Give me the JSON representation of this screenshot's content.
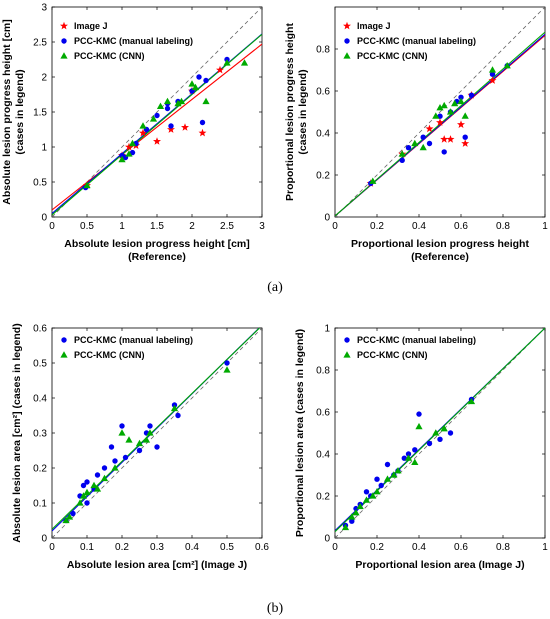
{
  "panel_labels": {
    "a": "(a)",
    "b": "(b)"
  },
  "colors": {
    "image_j": "#ff0000",
    "manual": "#0000ee",
    "cnn": "#00aa00",
    "diagonal": "#666666"
  },
  "chart_data": [
    {
      "type": "scatter",
      "xlabel": [
        "Absolute lesion progress height [cm]",
        "(Reference)"
      ],
      "ylabel": [
        "Absolute lesion progress height [cm]",
        "(cases in legend)"
      ],
      "xlim": [
        0,
        3
      ],
      "ylim": [
        0,
        3
      ],
      "xticks": [
        0,
        0.5,
        1,
        1.5,
        2,
        2.5,
        3
      ],
      "yticks": [
        0,
        0.5,
        1,
        1.5,
        2,
        2.5,
        3
      ],
      "xticklabels": [
        "0",
        "0.5",
        "1",
        "1.5",
        "2",
        "2.5",
        "3"
      ],
      "yticklabels": [
        "0",
        "0.5",
        "1",
        "1.5",
        "2",
        "2.5",
        "3"
      ],
      "grid": false,
      "legend_position": "top-left",
      "series": [
        {
          "name": "Image J",
          "marker": "star",
          "color": "#ff0000",
          "fit": [
            0.1,
            0.79
          ],
          "x": [
            0.5,
            1.0,
            1.1,
            1.2,
            1.3,
            1.5,
            1.7,
            1.9,
            2.0,
            2.15,
            2.4
          ],
          "y": [
            0.45,
            0.88,
            1.0,
            1.02,
            1.2,
            1.08,
            1.25,
            1.28,
            1.8,
            1.2,
            2.1
          ]
        },
        {
          "name": "PCC-KMC (manual labeling)",
          "marker": "circle",
          "color": "#0000ee",
          "fit": [
            0.05,
            0.855
          ],
          "x": [
            0.48,
            1.0,
            1.05,
            1.15,
            1.2,
            1.35,
            1.5,
            1.65,
            1.65,
            1.7,
            1.8,
            2.0,
            2.1,
            2.15,
            2.2,
            2.5
          ],
          "y": [
            0.42,
            0.88,
            0.85,
            0.92,
            1.05,
            1.25,
            1.45,
            1.55,
            1.62,
            1.3,
            1.65,
            1.8,
            2.0,
            1.35,
            1.95,
            2.25
          ]
        },
        {
          "name": "PCC-KMC (CNN)",
          "marker": "triangle",
          "color": "#00aa00",
          "fit": [
            0.03,
            0.86
          ],
          "x": [
            0.5,
            1.0,
            1.1,
            1.15,
            1.3,
            1.45,
            1.55,
            1.65,
            1.8,
            1.85,
            2.0,
            2.05,
            2.2,
            2.5,
            2.75
          ],
          "y": [
            0.45,
            0.82,
            0.9,
            1.05,
            1.3,
            1.4,
            1.58,
            1.65,
            1.62,
            1.65,
            1.9,
            1.85,
            1.65,
            2.2,
            2.2
          ]
        }
      ],
      "legend": [
        "Image J",
        "PCC-KMC (manual labeling)",
        "PCC-KMC (CNN)"
      ]
    },
    {
      "type": "scatter",
      "xlabel": [
        "Proportional lesion progress height",
        "(Reference)"
      ],
      "ylabel": [
        "Proportional lesion progress height",
        "(cases in legend)"
      ],
      "xlim": [
        0,
        1
      ],
      "ylim": [
        0,
        1
      ],
      "xticks": [
        0,
        0.2,
        0.4,
        0.6,
        0.8,
        1
      ],
      "yticks": [
        0,
        0.2,
        0.4,
        0.6,
        0.8
      ],
      "xticklabels": [
        "0",
        "0.2",
        "0.4",
        "0.6",
        "0.8",
        "1"
      ],
      "yticklabels": [
        "0",
        "0.2",
        "0.4",
        "0.6",
        "0.8"
      ],
      "grid": false,
      "legend_position": "top-left",
      "series": [
        {
          "name": "Image J",
          "marker": "star",
          "color": "#ff0000",
          "fit": [
            0.005,
            0.86
          ],
          "x": [
            0.17,
            0.32,
            0.45,
            0.5,
            0.52,
            0.55,
            0.6,
            0.62,
            0.65,
            0.75
          ],
          "y": [
            0.16,
            0.3,
            0.42,
            0.45,
            0.37,
            0.37,
            0.44,
            0.35,
            0.58,
            0.65
          ]
        },
        {
          "name": "PCC-KMC (manual labeling)",
          "marker": "circle",
          "color": "#0000ee",
          "fit": [
            0.005,
            0.865
          ],
          "x": [
            0.17,
            0.32,
            0.35,
            0.42,
            0.45,
            0.5,
            0.52,
            0.55,
            0.58,
            0.6,
            0.62,
            0.65,
            0.75,
            0.82
          ],
          "y": [
            0.16,
            0.27,
            0.33,
            0.38,
            0.35,
            0.48,
            0.31,
            0.5,
            0.55,
            0.57,
            0.38,
            0.58,
            0.68,
            0.72
          ]
        },
        {
          "name": "PCC-KMC (CNN)",
          "marker": "triangle",
          "color": "#00aa00",
          "fit": [
            0.005,
            0.875
          ],
          "x": [
            0.18,
            0.32,
            0.38,
            0.42,
            0.48,
            0.5,
            0.52,
            0.55,
            0.57,
            0.6,
            0.62,
            0.75,
            0.82
          ],
          "y": [
            0.17,
            0.3,
            0.35,
            0.33,
            0.48,
            0.52,
            0.53,
            0.5,
            0.54,
            0.55,
            0.48,
            0.7,
            0.72
          ]
        }
      ],
      "legend": [
        "Image J",
        "PCC-KMC (manual labeling)",
        "PCC-KMC (CNN)"
      ]
    },
    {
      "type": "scatter",
      "xlabel": [
        "Absolute lesion area [cm²] (Image J)"
      ],
      "ylabel": [
        "Absolute lesion area [cm²] (cases in legend)"
      ],
      "xlim": [
        0,
        0.6
      ],
      "ylim": [
        0,
        0.6
      ],
      "xticks": [
        0,
        0.1,
        0.2,
        0.3,
        0.4,
        0.5,
        0.6
      ],
      "yticks": [
        0,
        0.1,
        0.2,
        0.3,
        0.4,
        0.5,
        0.6
      ],
      "xticklabels": [
        "0",
        "0.1",
        "0.2",
        "0.3",
        "0.4",
        "0.5",
        "0.6"
      ],
      "yticklabels": [
        "0",
        "0.1",
        "0.2",
        "0.3",
        "0.4",
        "0.5",
        "0.6"
      ],
      "grid": false,
      "legend_position": "top-left",
      "series": [
        {
          "name": "PCC-KMC (manual labeling)",
          "marker": "circle",
          "color": "#0000ee",
          "fit": [
            0.02,
            0.98
          ],
          "x": [
            0.04,
            0.06,
            0.08,
            0.09,
            0.1,
            0.1,
            0.12,
            0.13,
            0.15,
            0.17,
            0.18,
            0.2,
            0.21,
            0.25,
            0.27,
            0.28,
            0.3,
            0.35,
            0.36,
            0.5
          ],
          "y": [
            0.05,
            0.07,
            0.12,
            0.15,
            0.16,
            0.1,
            0.14,
            0.18,
            0.2,
            0.26,
            0.22,
            0.32,
            0.23,
            0.25,
            0.3,
            0.32,
            0.26,
            0.38,
            0.35,
            0.5
          ]
        },
        {
          "name": "PCC-KMC (CNN)",
          "marker": "triangle",
          "color": "#00aa00",
          "fit": [
            0.025,
            0.97
          ],
          "x": [
            0.04,
            0.05,
            0.08,
            0.09,
            0.1,
            0.12,
            0.13,
            0.15,
            0.18,
            0.2,
            0.22,
            0.25,
            0.27,
            0.28,
            0.35,
            0.5
          ],
          "y": [
            0.05,
            0.06,
            0.1,
            0.12,
            0.13,
            0.15,
            0.14,
            0.17,
            0.2,
            0.3,
            0.28,
            0.27,
            0.28,
            0.3,
            0.37,
            0.48
          ]
        }
      ],
      "legend": [
        "PCC-KMC (manual labeling)",
        "PCC-KMC (CNN)"
      ]
    },
    {
      "type": "scatter",
      "xlabel": [
        "Proportional lesion area (Image J)"
      ],
      "ylabel": [
        "Proportional lesion area (cases in legend)"
      ],
      "xlim": [
        0,
        1
      ],
      "ylim": [
        0,
        1
      ],
      "xticks": [
        0,
        0.2,
        0.4,
        0.6,
        0.8,
        1
      ],
      "yticks": [
        0,
        0.2,
        0.4,
        0.6,
        0.8,
        1
      ],
      "xticklabels": [
        "0",
        "0.2",
        "0.4",
        "0.6",
        "0.8",
        "1"
      ],
      "yticklabels": [
        "0",
        "0.2",
        "0.4",
        "0.6",
        "0.8",
        "1"
      ],
      "grid": false,
      "legend_position": "top-left",
      "series": [
        {
          "name": "PCC-KMC (manual labeling)",
          "marker": "circle",
          "color": "#0000ee",
          "fit": [
            0.035,
            0.965
          ],
          "x": [
            0.05,
            0.08,
            0.1,
            0.12,
            0.15,
            0.17,
            0.2,
            0.22,
            0.25,
            0.28,
            0.3,
            0.33,
            0.35,
            0.38,
            0.4,
            0.45,
            0.5,
            0.55,
            0.65
          ],
          "y": [
            0.06,
            0.08,
            0.14,
            0.16,
            0.22,
            0.2,
            0.28,
            0.25,
            0.35,
            0.3,
            0.32,
            0.38,
            0.4,
            0.42,
            0.59,
            0.45,
            0.47,
            0.5,
            0.66
          ]
        },
        {
          "name": "PCC-KMC (CNN)",
          "marker": "triangle",
          "color": "#00aa00",
          "fit": [
            0.03,
            0.97
          ],
          "x": [
            0.05,
            0.08,
            0.1,
            0.12,
            0.15,
            0.18,
            0.2,
            0.25,
            0.28,
            0.3,
            0.35,
            0.38,
            0.4,
            0.48,
            0.52,
            0.65
          ],
          "y": [
            0.05,
            0.1,
            0.12,
            0.15,
            0.18,
            0.2,
            0.22,
            0.28,
            0.3,
            0.32,
            0.38,
            0.36,
            0.53,
            0.5,
            0.52,
            0.65
          ]
        }
      ],
      "legend": [
        "PCC-KMC (manual labeling)",
        "PCC-KMC (CNN)"
      ]
    }
  ]
}
